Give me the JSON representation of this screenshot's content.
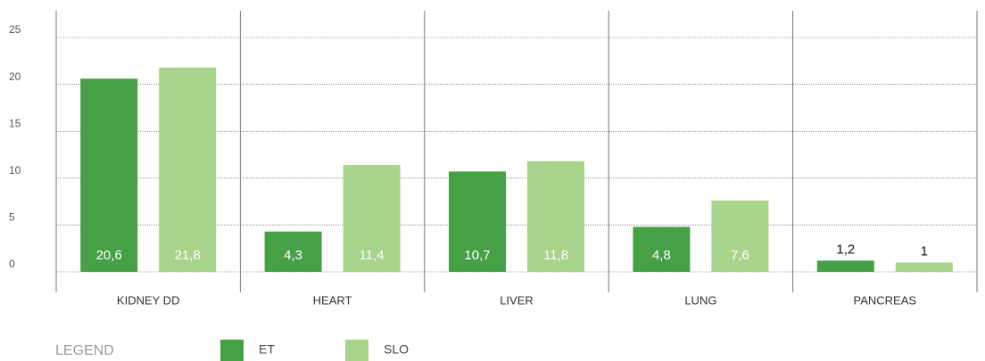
{
  "chart_data": {
    "type": "bar",
    "categories": [
      "KIDNEY DD",
      "HEART",
      "LIVER",
      "LUNG",
      "PANCREAS"
    ],
    "series": [
      {
        "name": "ET",
        "color": "#46a046",
        "values": [
          20.6,
          4.3,
          10.7,
          4.8,
          1.2
        ],
        "value_labels": [
          "20,6",
          "4,3",
          "10,7",
          "4,8",
          "1,2"
        ]
      },
      {
        "name": "SLO",
        "color": "#a8d48c",
        "values": [
          21.8,
          11.4,
          11.8,
          7.6,
          1
        ],
        "value_labels": [
          "21,8",
          "11,4",
          "11,8",
          "7,6",
          "1"
        ]
      }
    ],
    "ylim": [
      0,
      25
    ],
    "yticks": [
      0,
      5,
      10,
      15,
      20,
      25
    ],
    "grid": true,
    "legend_title": "LEGEND"
  }
}
